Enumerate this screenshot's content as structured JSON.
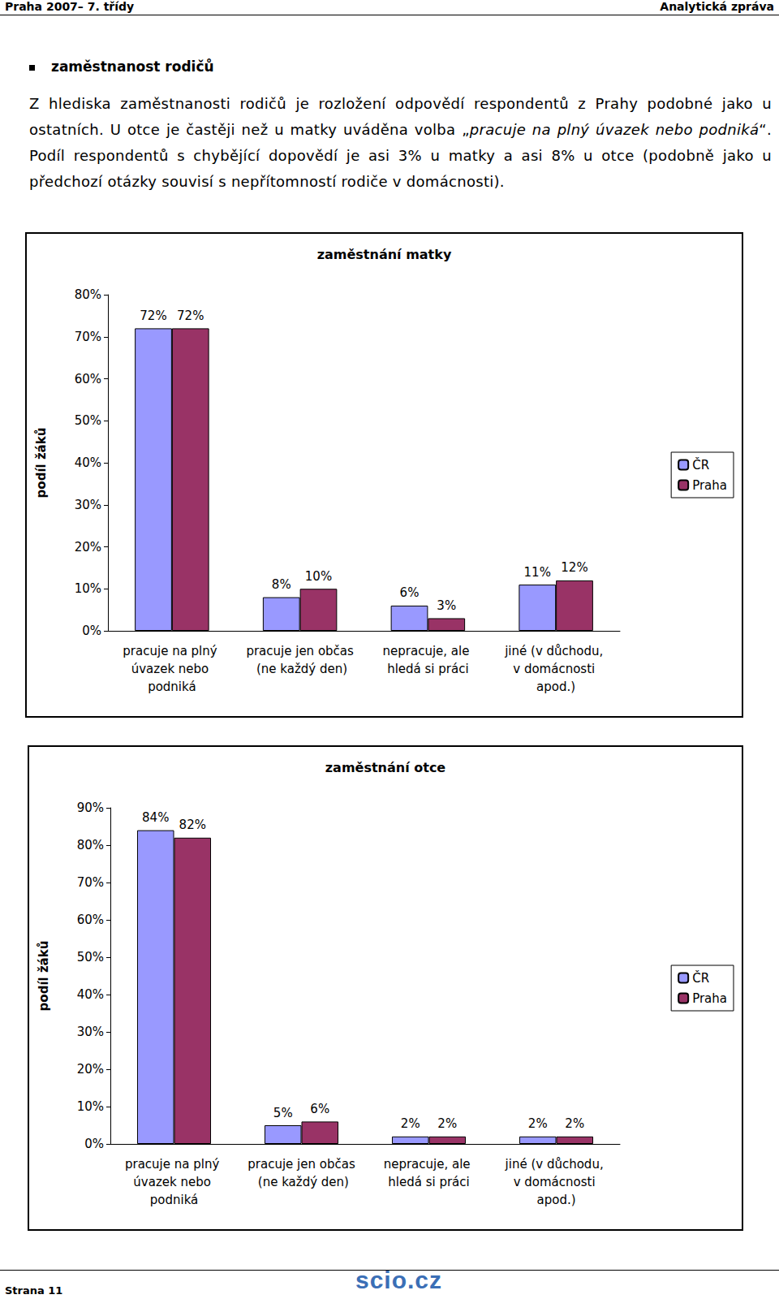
{
  "header": {
    "left": "Praha 2007– 7. třídy",
    "right": "Analytická zpráva"
  },
  "section": {
    "heading": "zaměstnanost rodičů",
    "paragraph": [
      {
        "text": "Z hlediska zaměstnanosti rodičů je rozložení odpovědí respondentů z Prahy podobné jako u ostatních. U otce je častěji než u matky uváděna volba „",
        "italic": false
      },
      {
        "text": "pracuje na plný úvazek nebo podniká",
        "italic": true
      },
      {
        "text": "“. Podíl respondentů s chybějící dopovědí je asi 3% u matky a asi 8% u otce (podobně jako u předchozí otázky souvisí s nepřítomností rodiče v domácnosti).",
        "italic": false
      }
    ]
  },
  "chart_data": [
    {
      "type": "bar",
      "title": "zaměstnání matky",
      "y_label": "podíl žáků",
      "categories": [
        "pracuje na plný úvazek nebo podniká",
        "pracuje jen občas (ne každý den)",
        "nepracuje, ale hledá si práci",
        "jiné (v důchodu, v domácnosti apod.)"
      ],
      "series": [
        {
          "name": "ČR",
          "color": "#9999ff",
          "values": [
            72,
            8,
            6,
            11
          ],
          "value_labels": [
            "72%",
            "8%",
            "6%",
            "11%"
          ]
        },
        {
          "name": "Praha",
          "color": "#993366",
          "values": [
            72,
            10,
            3,
            12
          ],
          "value_labels": [
            "72%",
            "10%",
            "3%",
            "12%"
          ]
        }
      ],
      "ylim": [
        0,
        80
      ],
      "yticks": [
        {
          "value": 0,
          "label": "0%"
        },
        {
          "value": 10,
          "label": "10%"
        },
        {
          "value": 20,
          "label": "20%"
        },
        {
          "value": 30,
          "label": "30%"
        },
        {
          "value": 40,
          "label": "40%"
        },
        {
          "value": 50,
          "label": "50%"
        },
        {
          "value": 60,
          "label": "60%"
        },
        {
          "value": 70,
          "label": "70%"
        },
        {
          "value": 80,
          "label": "80%"
        }
      ],
      "grid": false,
      "legend": "right",
      "data_labels": true
    },
    {
      "type": "bar",
      "title": "zaměstnání otce",
      "y_label": "podíl žáků",
      "categories": [
        "pracuje na plný úvazek nebo podniká",
        "pracuje jen občas (ne každý den)",
        "nepracuje, ale hledá si práci",
        "jiné (v důchodu, v domácnosti apod.)"
      ],
      "series": [
        {
          "name": "ČR",
          "color": "#9999ff",
          "values": [
            84,
            5,
            2,
            2
          ],
          "value_labels": [
            "84%",
            "5%",
            "2%",
            "2%"
          ]
        },
        {
          "name": "Praha",
          "color": "#993366",
          "values": [
            82,
            6,
            2,
            2
          ],
          "value_labels": [
            "82%",
            "6%",
            "2%",
            "2%"
          ]
        }
      ],
      "ylim": [
        0,
        90
      ],
      "yticks": [
        {
          "value": 0,
          "label": "0%"
        },
        {
          "value": 10,
          "label": "10%"
        },
        {
          "value": 20,
          "label": "20%"
        },
        {
          "value": 30,
          "label": "30%"
        },
        {
          "value": 40,
          "label": "40%"
        },
        {
          "value": 50,
          "label": "50%"
        },
        {
          "value": 60,
          "label": "60%"
        },
        {
          "value": 70,
          "label": "70%"
        },
        {
          "value": 80,
          "label": "80%"
        },
        {
          "value": 90,
          "label": "90%"
        }
      ],
      "grid": false,
      "legend": "right",
      "data_labels": true
    }
  ],
  "footer": {
    "page": "Strana 11",
    "logo": "scio.cz"
  }
}
